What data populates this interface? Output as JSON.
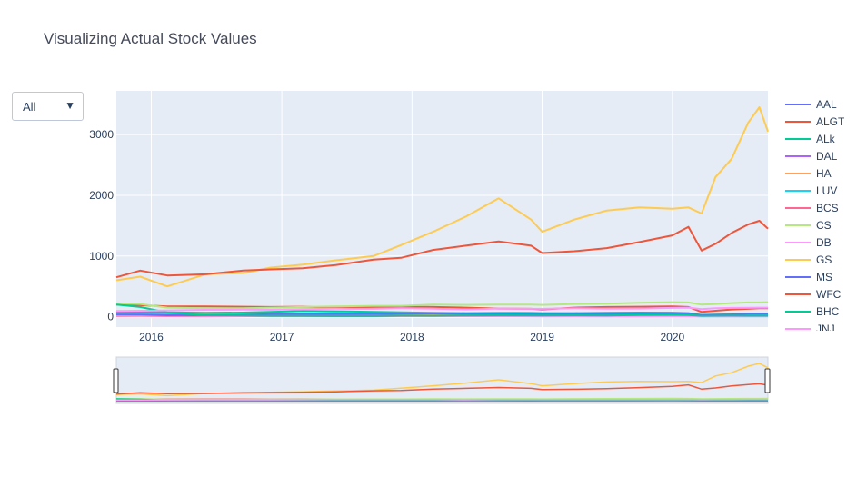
{
  "chart_data": {
    "type": "line",
    "title": "Visualizing Actual Stock Values",
    "xlabel": "",
    "ylabel": "",
    "x_range": [
      "2015-09-25",
      "2020-09-25"
    ],
    "y_range": [
      -170,
      3720
    ],
    "x_ticks": [
      {
        "value": "2016-01-01",
        "label": "2016"
      },
      {
        "value": "2017-01-01",
        "label": "2017"
      },
      {
        "value": "2018-01-01",
        "label": "2018"
      },
      {
        "value": "2019-01-01",
        "label": "2019"
      },
      {
        "value": "2020-01-01",
        "label": "2020"
      }
    ],
    "y_ticks": [
      0,
      1000,
      2000,
      3000
    ],
    "grid": true,
    "legend_position": "right",
    "range_slider": true,
    "x": [
      "2015-09-25",
      "2015-12-01",
      "2016-02-15",
      "2016-06-01",
      "2016-09-15",
      "2016-12-01",
      "2017-03-01",
      "2017-06-01",
      "2017-09-15",
      "2017-12-01",
      "2018-03-01",
      "2018-06-01",
      "2018-09-01",
      "2018-12-01",
      "2019-01-01",
      "2019-04-01",
      "2019-07-01",
      "2019-10-01",
      "2020-01-01",
      "2020-02-15",
      "2020-03-23",
      "2020-05-01",
      "2020-06-15",
      "2020-08-01",
      "2020-09-01",
      "2020-09-25"
    ],
    "series": [
      {
        "name": "AAL",
        "color": "#636efa",
        "values": [
          45,
          50,
          40,
          45,
          35,
          50,
          48,
          48,
          45,
          52,
          53,
          43,
          40,
          36,
          33,
          34,
          32,
          30,
          29,
          28,
          10,
          12,
          12,
          13,
          13,
          13
        ]
      },
      {
        "name": "ALGT",
        "color": "#ef553b",
        "values": [
          200,
          190,
          170,
          170,
          165,
          160,
          165,
          150,
          160,
          165,
          160,
          150,
          135,
          130,
          120,
          150,
          160,
          165,
          170,
          160,
          80,
          100,
          120,
          130,
          140,
          140
        ]
      },
      {
        "name": "ALk",
        "color": "#00cc96",
        "values": [
          80,
          80,
          72,
          67,
          70,
          80,
          95,
          90,
          80,
          72,
          65,
          60,
          65,
          63,
          60,
          60,
          66,
          70,
          68,
          60,
          25,
          30,
          35,
          38,
          40,
          40
        ]
      },
      {
        "name": "DAL",
        "color": "#ab63fa",
        "values": [
          45,
          48,
          45,
          42,
          40,
          48,
          50,
          54,
          50,
          54,
          55,
          52,
          58,
          55,
          50,
          55,
          58,
          57,
          58,
          55,
          20,
          25,
          28,
          30,
          32,
          32
        ]
      },
      {
        "name": "HA",
        "color": "#ffa15a",
        "values": [
          30,
          35,
          40,
          45,
          40,
          45,
          50,
          45,
          40,
          45,
          43,
          40,
          44,
          35,
          30,
          30,
          27,
          25,
          28,
          25,
          10,
          12,
          14,
          15,
          16,
          16
        ]
      },
      {
        "name": "LUV",
        "color": "#19d3f3",
        "values": [
          40,
          43,
          40,
          40,
          38,
          45,
          53,
          58,
          55,
          58,
          58,
          55,
          60,
          50,
          47,
          50,
          52,
          55,
          55,
          52,
          30,
          32,
          35,
          38,
          38,
          38
        ]
      },
      {
        "name": "BCS",
        "color": "#ff6692",
        "values": [
          14,
          15,
          9,
          8,
          9,
          11,
          11,
          10,
          10,
          11,
          11,
          11,
          10,
          8,
          8,
          8,
          8,
          8,
          9,
          8,
          5,
          5,
          5,
          5,
          5,
          5
        ]
      },
      {
        "name": "CS",
        "color": "#b6e880",
        "values": [
          220,
          210,
          150,
          140,
          140,
          150,
          160,
          170,
          180,
          180,
          200,
          195,
          200,
          200,
          195,
          210,
          215,
          230,
          240,
          235,
          200,
          210,
          225,
          235,
          235,
          240
        ]
      },
      {
        "name": "DB",
        "color": "#ff97ff",
        "values": [
          25,
          25,
          18,
          15,
          13,
          15,
          18,
          17,
          18,
          19,
          16,
          12,
          11,
          9,
          8,
          8,
          7,
          8,
          8,
          9,
          6,
          7,
          8,
          9,
          9,
          9
        ]
      },
      {
        "name": "GS",
        "color": "#fecb52",
        "values": [
          600,
          660,
          500,
          700,
          720,
          810,
          860,
          930,
          1000,
          1180,
          1400,
          1650,
          1950,
          1600,
          1400,
          1600,
          1750,
          1800,
          1780,
          1800,
          1700,
          2300,
          2600,
          3200,
          3450,
          3050
        ]
      },
      {
        "name": "MS",
        "color": "#636efa",
        "values": [
          35,
          33,
          25,
          26,
          30,
          42,
          44,
          43,
          46,
          52,
          55,
          48,
          46,
          39,
          40,
          43,
          44,
          46,
          51,
          53,
          30,
          36,
          40,
          50,
          52,
          52
        ]
      },
      {
        "name": "WFC",
        "color": "#ef553b",
        "values": [
          650,
          760,
          680,
          700,
          760,
          780,
          800,
          850,
          940,
          970,
          1100,
          1170,
          1240,
          1170,
          1050,
          1080,
          1130,
          1230,
          1340,
          1480,
          1090,
          1200,
          1380,
          1520,
          1580,
          1450
        ]
      },
      {
        "name": "BHC",
        "color": "#00cc96",
        "values": [
          200,
          160,
          70,
          25,
          22,
          15,
          15,
          13,
          14,
          18,
          17,
          22,
          23,
          20,
          22,
          23,
          22,
          27,
          30,
          28,
          15,
          17,
          18,
          17,
          17,
          17
        ]
      },
      {
        "name": "JNJ",
        "color": "#ff97ff",
        "values": [
          95,
          100,
          105,
          115,
          118,
          115,
          125,
          132,
          130,
          140,
          132,
          120,
          135,
          130,
          130,
          138,
          134,
          135,
          145,
          150,
          125,
          140,
          145,
          148,
          150,
          150
        ]
      }
    ]
  }
}
